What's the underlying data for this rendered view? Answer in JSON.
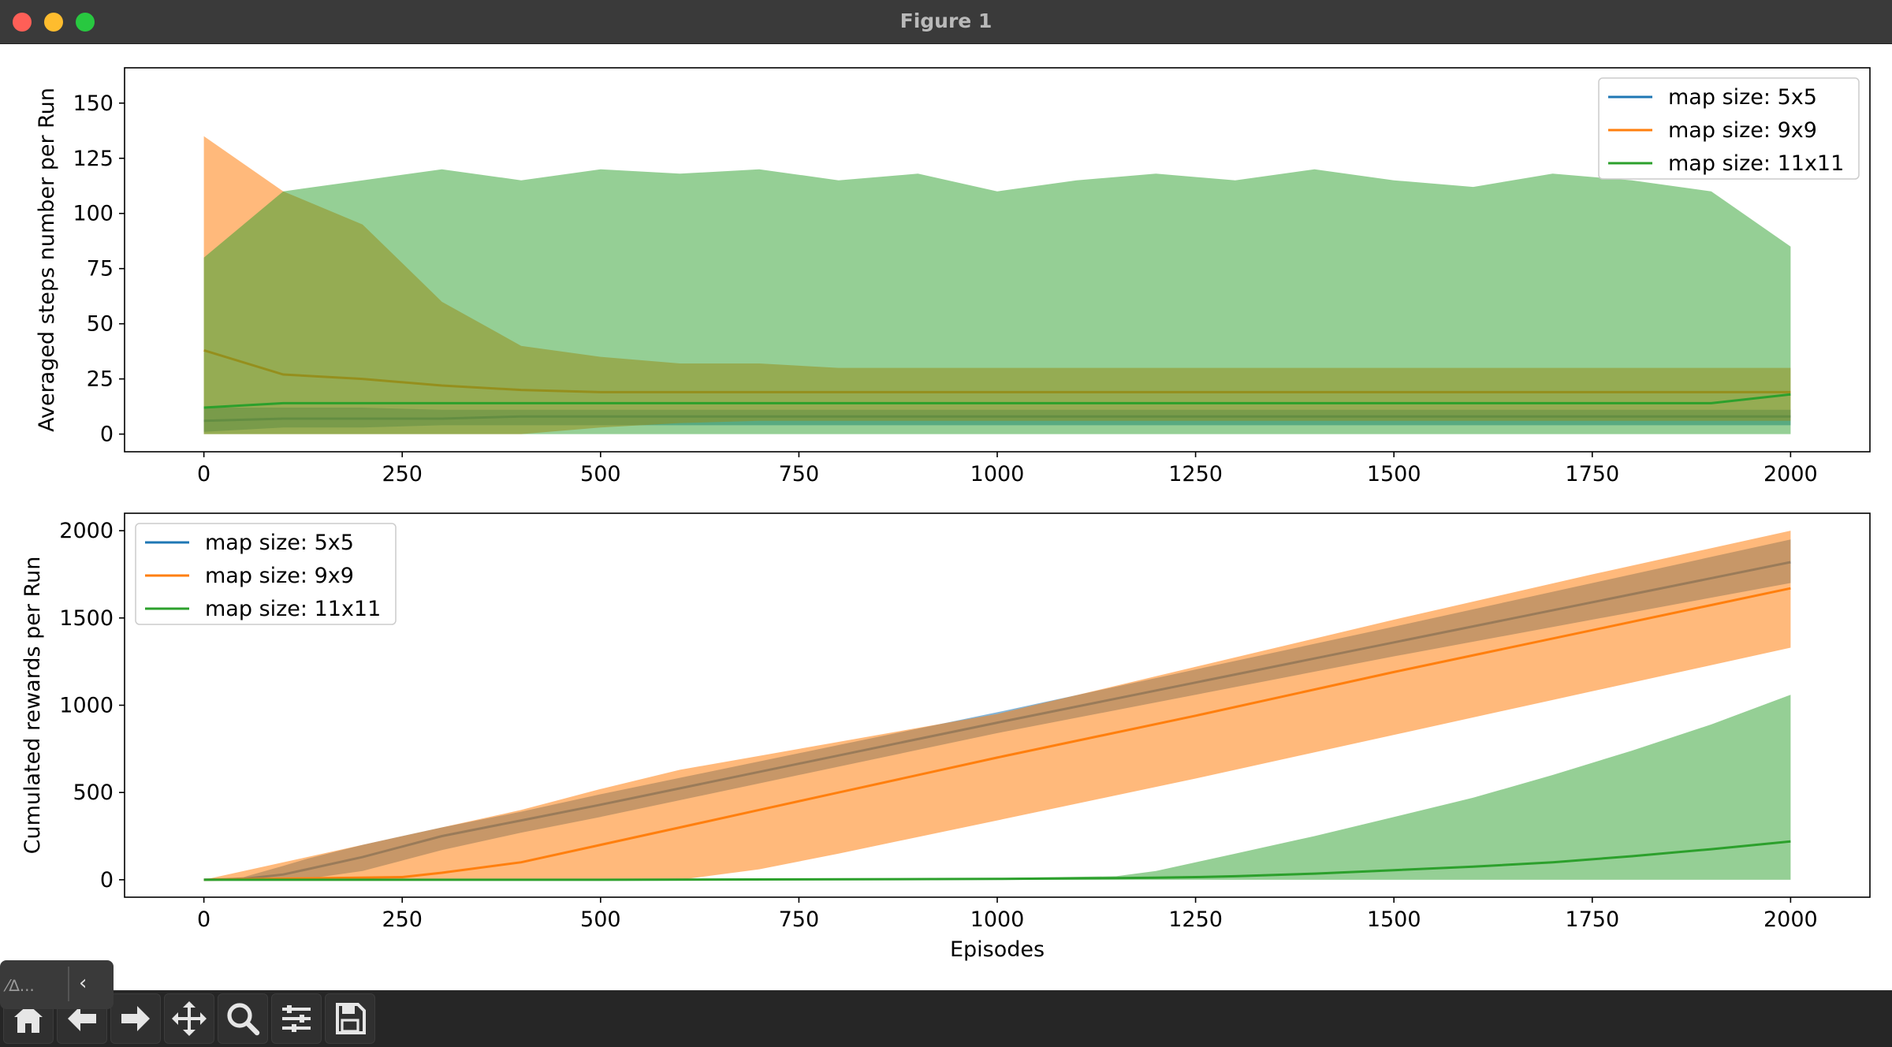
{
  "window": {
    "title": "Figure 1"
  },
  "toolbar": {
    "buttons": [
      {
        "icon": "home-icon"
      },
      {
        "icon": "back-arrow-icon"
      },
      {
        "icon": "forward-arrow-icon"
      },
      {
        "icon": "pan-move-icon"
      },
      {
        "icon": "zoom-magnifier-icon"
      },
      {
        "icon": "configure-sliders-icon"
      },
      {
        "icon": "save-floppy-icon"
      }
    ],
    "tooltip_label": "⁄∆..."
  },
  "colors": {
    "blue": "#1f77b4",
    "orange": "#ff7f0e",
    "green": "#2ca02c"
  },
  "chart_data": [
    {
      "type": "line",
      "title": "",
      "xlabel": "",
      "ylabel": "Averaged steps number per Run",
      "xlim": [
        -100,
        2100
      ],
      "ylim": [
        -8,
        166
      ],
      "xticks": [
        0,
        250,
        500,
        750,
        1000,
        1250,
        1500,
        1750,
        2000
      ],
      "yticks": [
        0,
        25,
        50,
        75,
        100,
        125,
        150
      ],
      "legend": {
        "position": "top-right",
        "entries": [
          "map size: 5x5",
          "map size: 9x9",
          "map size: 11x11"
        ]
      },
      "x": [
        0,
        100,
        200,
        300,
        400,
        500,
        600,
        700,
        800,
        900,
        1000,
        1100,
        1200,
        1300,
        1400,
        1500,
        1600,
        1700,
        1800,
        1900,
        2000
      ],
      "series": [
        {
          "name": "map size: 5x5",
          "mean": [
            6,
            7,
            7,
            7,
            8,
            8,
            8,
            8,
            8,
            8,
            8,
            8,
            8,
            8,
            8,
            8,
            8,
            8,
            8,
            8,
            8
          ],
          "upper": [
            12,
            12,
            12,
            11,
            11,
            11,
            11,
            11,
            11,
            11,
            11,
            11,
            11,
            11,
            11,
            11,
            11,
            11,
            11,
            11,
            11
          ],
          "lower": [
            1,
            3,
            3,
            4,
            4,
            4,
            4,
            4,
            4,
            4,
            4,
            4,
            4,
            4,
            4,
            4,
            4,
            4,
            4,
            4,
            4
          ]
        },
        {
          "name": "map size: 9x9",
          "mean": [
            38,
            27,
            25,
            22,
            20,
            19,
            19,
            19,
            19,
            19,
            19,
            19,
            19,
            19,
            19,
            19,
            19,
            19,
            19,
            19,
            19
          ],
          "upper": [
            135,
            110,
            95,
            60,
            40,
            35,
            32,
            32,
            30,
            30,
            30,
            30,
            30,
            30,
            30,
            30,
            30,
            30,
            30,
            30,
            30
          ],
          "lower": [
            0,
            0,
            0,
            0,
            0,
            3,
            5,
            6,
            6,
            6,
            6,
            6,
            6,
            6,
            6,
            6,
            6,
            6,
            6,
            6,
            6
          ]
        },
        {
          "name": "map size: 11x11",
          "mean": [
            12,
            14,
            14,
            14,
            14,
            14,
            14,
            14,
            14,
            14,
            14,
            14,
            14,
            14,
            14,
            14,
            14,
            14,
            14,
            14,
            18
          ],
          "upper": [
            80,
            110,
            115,
            120,
            115,
            120,
            118,
            120,
            115,
            118,
            110,
            115,
            118,
            115,
            120,
            115,
            112,
            118,
            115,
            110,
            85
          ],
          "lower": [
            0,
            0,
            0,
            0,
            0,
            0,
            0,
            0,
            0,
            0,
            0,
            0,
            0,
            0,
            0,
            0,
            0,
            0,
            0,
            0,
            0
          ]
        }
      ]
    },
    {
      "type": "area",
      "title": "",
      "xlabel": "Episodes",
      "ylabel": "Cumulated rewards per Run",
      "xlim": [
        -100,
        2100
      ],
      "ylim": [
        -100,
        2100
      ],
      "xticks": [
        0,
        250,
        500,
        750,
        1000,
        1250,
        1500,
        1750,
        2000
      ],
      "yticks": [
        0,
        500,
        1000,
        1500,
        2000
      ],
      "legend": {
        "position": "top-left",
        "entries": [
          "map size: 5x5",
          "map size: 9x9",
          "map size: 11x11"
        ]
      },
      "series": [
        {
          "name": "map size: 5x5",
          "x": [
            0,
            50,
            100,
            130,
            200,
            250,
            300,
            400,
            500,
            1000,
            1500,
            2000
          ],
          "mean": [
            0,
            5,
            30,
            60,
            130,
            190,
            250,
            340,
            430,
            900,
            1360,
            1820
          ],
          "upper": [
            0,
            15,
            80,
            120,
            200,
            250,
            300,
            390,
            490,
            960,
            1450,
            1950
          ],
          "lower": [
            0,
            0,
            0,
            5,
            50,
            110,
            170,
            270,
            360,
            840,
            1280,
            1700
          ]
        },
        {
          "name": "map size: 9x9",
          "x": [
            0,
            250,
            300,
            400,
            500,
            600,
            700,
            800,
            1000,
            1250,
            1500,
            1750,
            2000
          ],
          "mean": [
            0,
            15,
            40,
            100,
            200,
            300,
            400,
            500,
            700,
            940,
            1190,
            1430,
            1670
          ],
          "upper": [
            0,
            250,
            300,
            400,
            520,
            630,
            710,
            790,
            950,
            1220,
            1490,
            1750,
            2000
          ],
          "lower": [
            0,
            0,
            0,
            0,
            0,
            0,
            60,
            150,
            340,
            580,
            830,
            1080,
            1330
          ]
        },
        {
          "name": "map size: 11x11",
          "x": [
            0,
            500,
            1000,
            1150,
            1200,
            1250,
            1300,
            1400,
            1500,
            1600,
            1700,
            1800,
            1900,
            2000
          ],
          "mean": [
            0,
            0,
            5,
            10,
            12,
            15,
            20,
            35,
            55,
            75,
            100,
            135,
            175,
            220
          ],
          "upper": [
            0,
            0,
            10,
            20,
            50,
            100,
            150,
            250,
            360,
            470,
            600,
            740,
            890,
            1060
          ],
          "lower": [
            0,
            0,
            0,
            0,
            0,
            0,
            0,
            0,
            0,
            0,
            0,
            0,
            0,
            0
          ]
        }
      ]
    }
  ]
}
